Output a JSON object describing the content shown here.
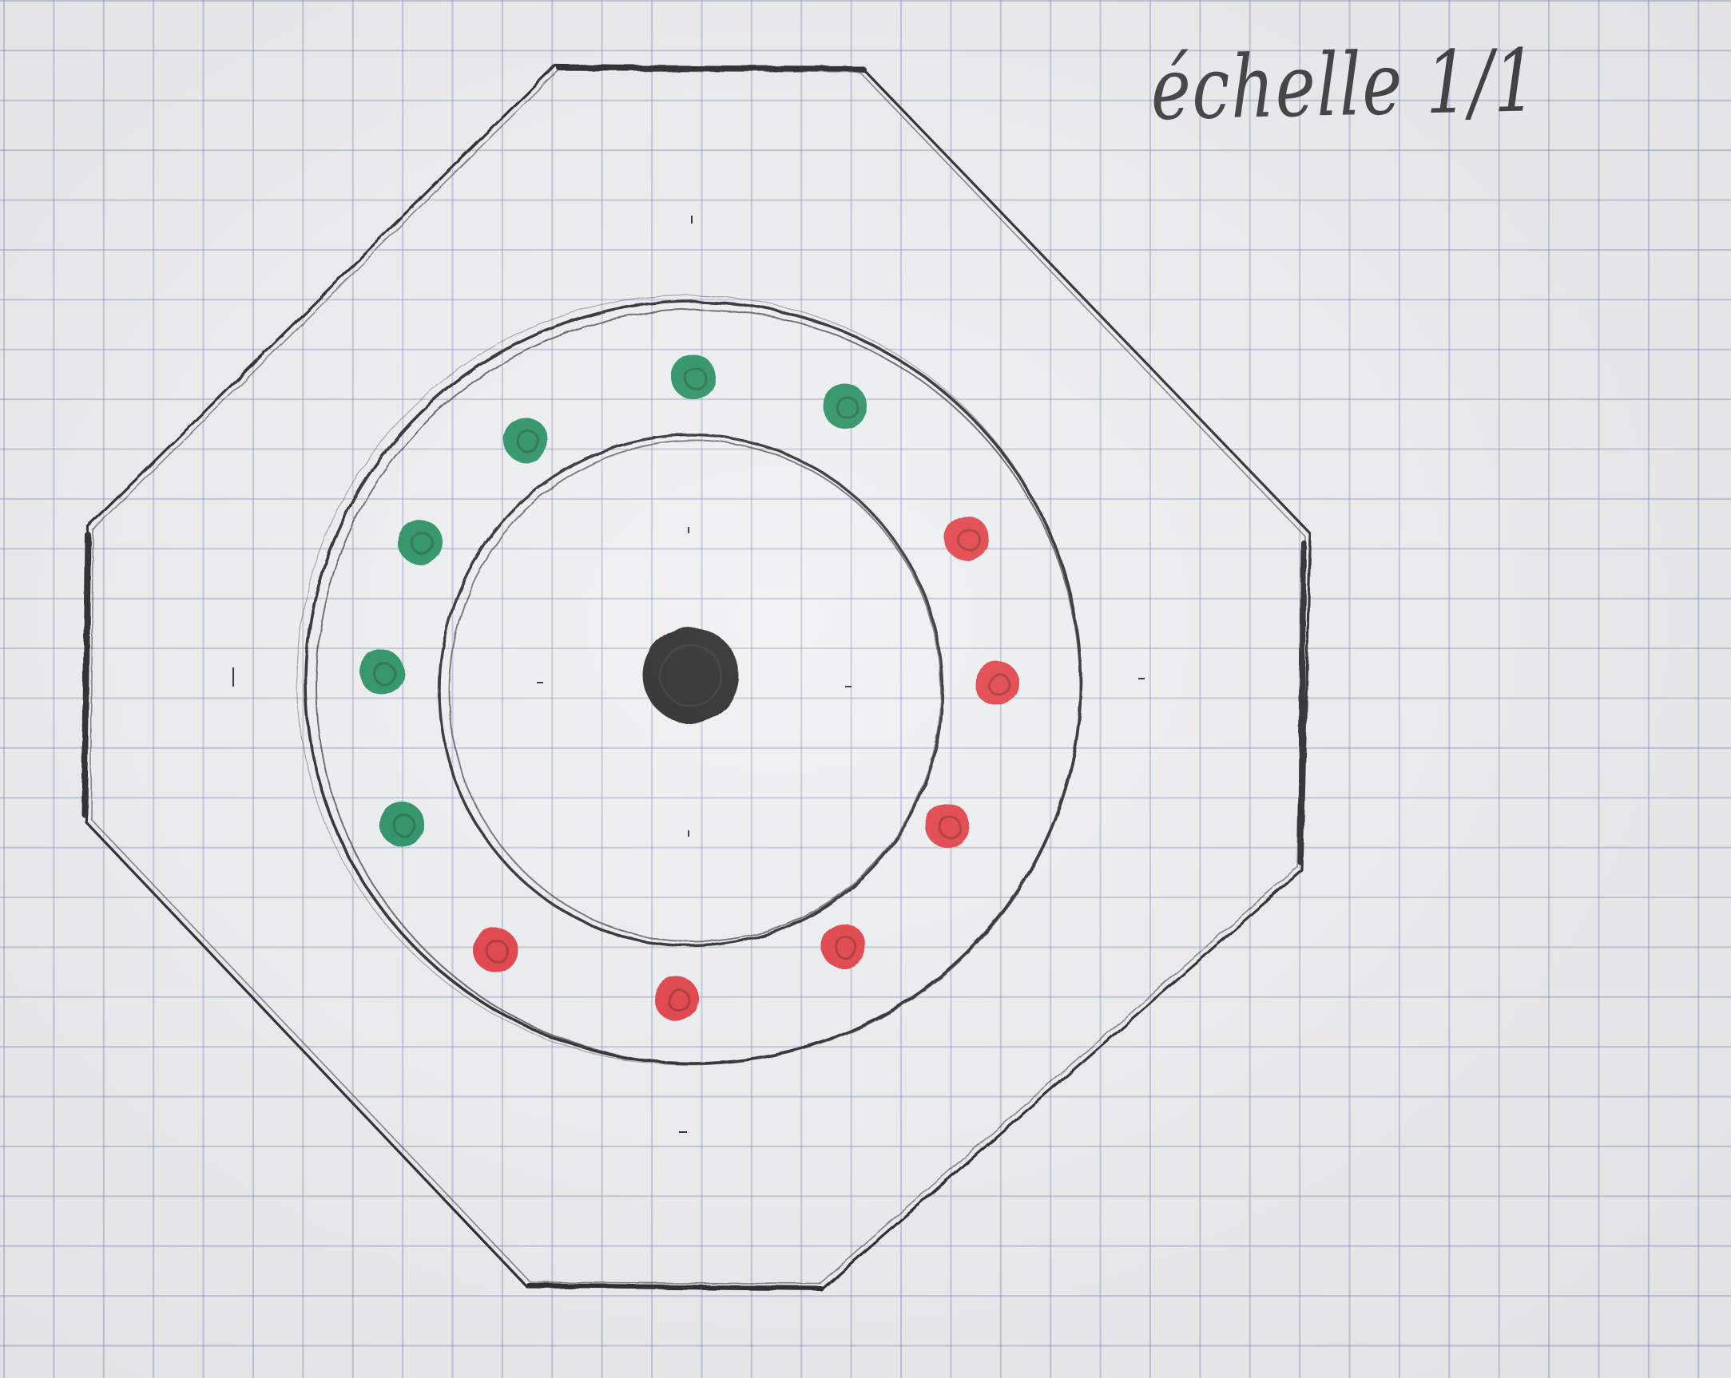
{
  "annotation": {
    "scale_text": "échelle 1/1"
  },
  "colors": {
    "ink": "#232327",
    "green_dot": "#1f8a5a",
    "red_dot": "#e0363a",
    "center_dot": "#151214",
    "paper": "#eeeff1",
    "grid_line": "#8c9ec4"
  },
  "drawing": {
    "outer_shape": "octagon",
    "inner_shapes": [
      "outer-circle",
      "inner-circle"
    ],
    "center_mark": "filled-black-dot",
    "green_dot_count": 6,
    "red_dot_count": 6
  }
}
